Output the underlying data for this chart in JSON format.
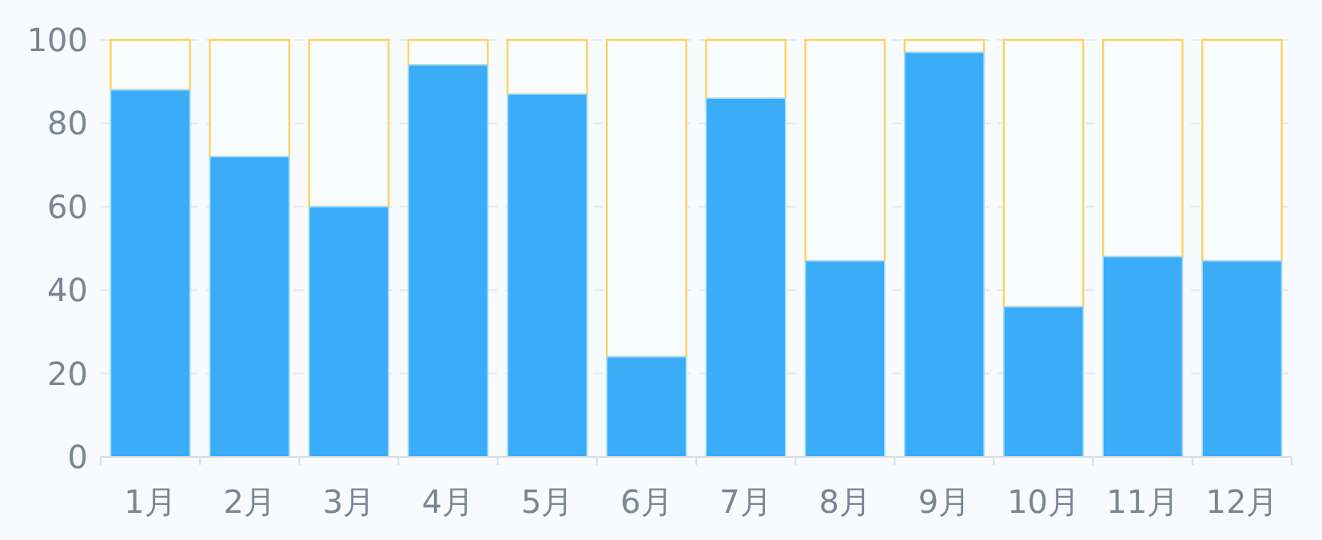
{
  "chart_data": {
    "type": "bar",
    "stacked": true,
    "categories": [
      "1月",
      "2月",
      "3月",
      "4月",
      "5月",
      "6月",
      "7月",
      "8月",
      "9月",
      "10月",
      "11月",
      "12月"
    ],
    "series": [
      {
        "color": "#3bacf8",
        "values": [
          88,
          72,
          60,
          94,
          87,
          24,
          86,
          47,
          97,
          36,
          48,
          47
        ]
      },
      {
        "color": "#fdd35a",
        "values": [
          12,
          28,
          40,
          6,
          13,
          76,
          14,
          53,
          3,
          64,
          52,
          53
        ]
      }
    ],
    "ylim": [
      0,
      100
    ],
    "yticks": [
      0,
      20,
      40,
      60,
      80,
      100
    ],
    "grid": "y"
  }
}
